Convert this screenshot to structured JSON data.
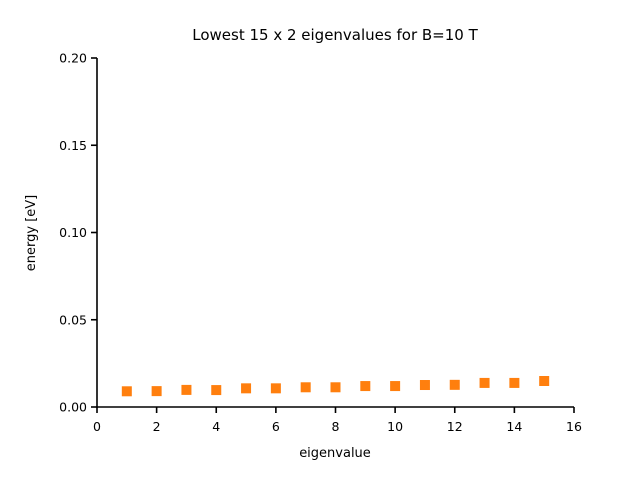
{
  "figure": {
    "title": "Lowest 15 x 2 eigenvalues for B=10 T",
    "xlabel": "eigenvalue",
    "ylabel": "energy [eV]",
    "background_color": "#ffffff",
    "text_color": "#000000",
    "spine_color": "#000000"
  },
  "chart_data": {
    "type": "scatter",
    "title": "Lowest 15 x 2 eigenvalues for B=10 T",
    "xlabel": "eigenvalue",
    "ylabel": "energy [eV]",
    "xlim": [
      0,
      16
    ],
    "ylim": [
      0.0,
      0.2
    ],
    "x_ticks": [
      0,
      2,
      4,
      6,
      8,
      10,
      12,
      14,
      16
    ],
    "x_tick_labels": [
      "0",
      "2",
      "4",
      "6",
      "8",
      "10",
      "12",
      "14",
      "16"
    ],
    "y_ticks": [
      0.0,
      0.05,
      0.1,
      0.15,
      0.2
    ],
    "y_tick_labels": [
      "0.00",
      "0.05",
      "0.10",
      "0.15",
      "0.20"
    ],
    "grid": false,
    "legend": "none",
    "spines": [
      "left",
      "bottom"
    ],
    "marker": "square",
    "marker_size_px": 10,
    "marker_color": "#ff7f0e",
    "x": [
      1,
      2,
      3,
      4,
      5,
      6,
      7,
      8,
      9,
      10,
      11,
      12,
      13,
      14,
      15
    ],
    "y": [
      0.009,
      0.0091,
      0.0098,
      0.0097,
      0.0107,
      0.0107,
      0.0113,
      0.0113,
      0.012,
      0.012,
      0.0126,
      0.0127,
      0.0138,
      0.0138,
      0.0149
    ]
  }
}
